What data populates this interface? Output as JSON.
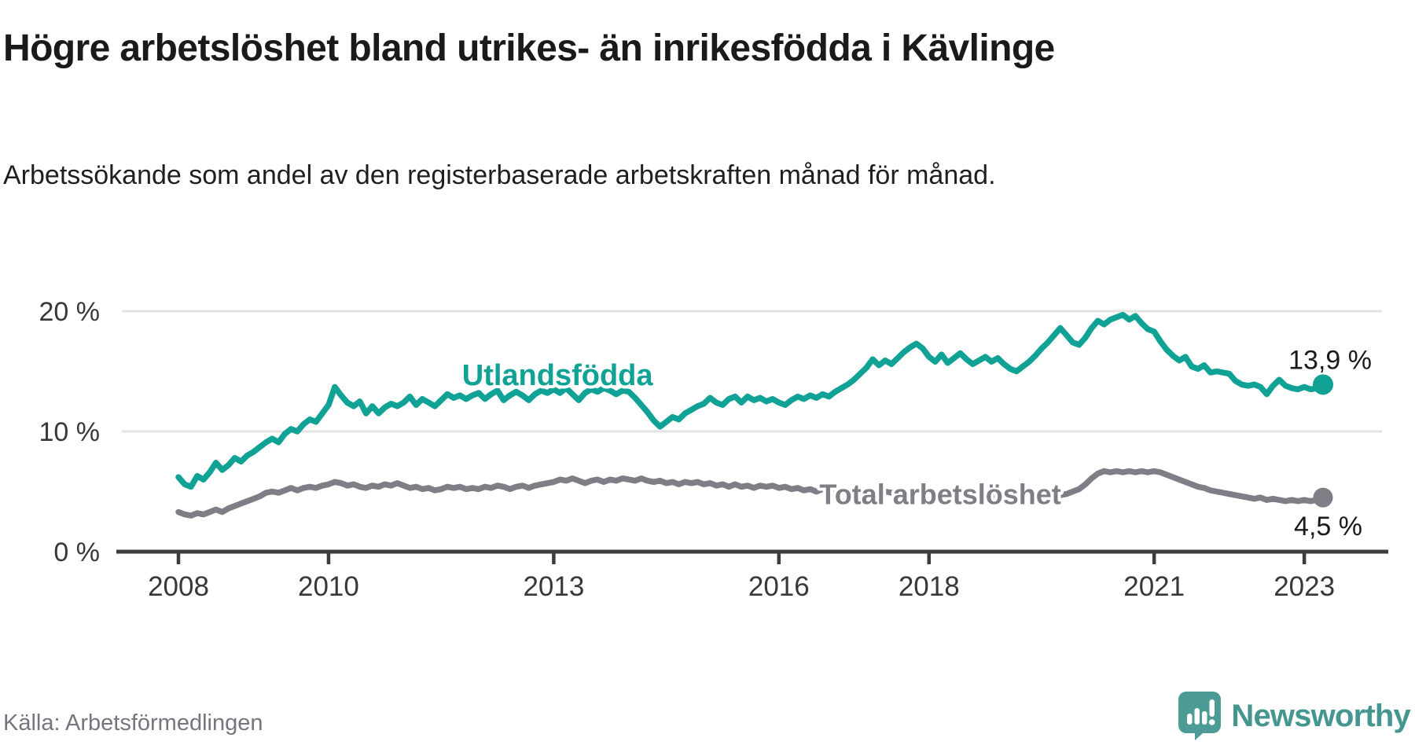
{
  "header": {
    "title": "Högre arbetslöshet bland utrikes- än inrikesfödda i Kävlinge",
    "subtitle": "Arbetssökande som andel av den registerbaserade arbetskraften månad för månad."
  },
  "footer": {
    "source": "Källa: Arbetsförmedlingen",
    "brand": "Newsworthy"
  },
  "colors": {
    "title_text": "#1a1a1a",
    "subtitle_text": "#1f1f1f",
    "grid": "#e3e3e3",
    "axis": "#3c3c3c",
    "tick_label": "#383838",
    "value_label": "#1a1a1a",
    "foreign_born_line": "#11a296",
    "total_line": "#7e7e86",
    "total_label": "#77777e",
    "source_text": "#75757d",
    "brand_teal": "#44968f",
    "logo_bubble": "#4c9b95"
  },
  "chart_data": {
    "type": "line",
    "unit": "%",
    "frequency": "monthly",
    "x_start": {
      "year": 2008,
      "month": 1
    },
    "x_end": {
      "year": 2023,
      "month": 4
    },
    "ylim": [
      0,
      26
    ],
    "grid": "horizontal",
    "legend_position": "inline-labels",
    "y_ticks": [
      {
        "value": 0,
        "label": "0 %"
      },
      {
        "value": 10,
        "label": "10 %"
      },
      {
        "value": 20,
        "label": "20 %"
      }
    ],
    "x_ticks": [
      {
        "year": 2008,
        "label": "2008"
      },
      {
        "year": 2010,
        "label": "2010"
      },
      {
        "year": 2013,
        "label": "2013"
      },
      {
        "year": 2016,
        "label": "2016"
      },
      {
        "year": 2018,
        "label": "2018"
      },
      {
        "year": 2021,
        "label": "2021"
      },
      {
        "year": 2023,
        "label": "2023"
      }
    ],
    "series": [
      {
        "id": "total",
        "name": "Total arbetslöshet",
        "color": "#7e7e86",
        "end_label": "4,5 %",
        "end_value": 4.5,
        "label_anchor": {
          "year_x": 2018.15,
          "value_y": 4.8,
          "align": "middle",
          "font_size": 36
        },
        "end_label_offset": {
          "dx": 50,
          "dy": 48
        },
        "dot_radius": 12.5,
        "values": [
          3.3,
          3.1,
          3.0,
          3.2,
          3.1,
          3.3,
          3.5,
          3.3,
          3.6,
          3.8,
          4.0,
          4.2,
          4.4,
          4.6,
          4.9,
          5.0,
          4.9,
          5.1,
          5.3,
          5.1,
          5.3,
          5.4,
          5.3,
          5.5,
          5.6,
          5.8,
          5.7,
          5.5,
          5.6,
          5.4,
          5.3,
          5.5,
          5.4,
          5.6,
          5.5,
          5.7,
          5.5,
          5.3,
          5.4,
          5.2,
          5.3,
          5.1,
          5.2,
          5.4,
          5.3,
          5.4,
          5.2,
          5.3,
          5.2,
          5.4,
          5.3,
          5.5,
          5.4,
          5.2,
          5.4,
          5.5,
          5.3,
          5.5,
          5.6,
          5.7,
          5.8,
          6.0,
          5.9,
          6.1,
          5.9,
          5.7,
          5.9,
          6.0,
          5.8,
          6.0,
          5.9,
          6.1,
          6.0,
          5.9,
          6.1,
          5.9,
          5.8,
          5.9,
          5.7,
          5.8,
          5.6,
          5.8,
          5.7,
          5.8,
          5.6,
          5.7,
          5.5,
          5.6,
          5.4,
          5.6,
          5.4,
          5.5,
          5.3,
          5.5,
          5.4,
          5.5,
          5.3,
          5.4,
          5.2,
          5.3,
          5.1,
          5.2,
          5.0,
          5.2,
          5.1,
          5.2,
          5.0,
          5.1,
          5.0,
          5.1,
          4.9,
          5.0,
          4.8,
          5.0,
          4.9,
          5.0,
          4.8,
          4.9,
          5.0,
          4.9,
          4.8,
          4.9,
          4.7,
          4.8,
          4.6,
          4.7,
          4.6,
          4.7,
          4.5,
          4.6,
          4.7,
          4.6,
          4.5,
          4.6,
          4.4,
          4.5,
          4.6,
          4.5,
          4.6,
          4.7,
          4.8,
          4.7,
          4.8,
          5.0,
          5.2,
          5.6,
          6.1,
          6.5,
          6.7,
          6.6,
          6.7,
          6.6,
          6.7,
          6.6,
          6.7,
          6.6,
          6.7,
          6.6,
          6.4,
          6.2,
          6.0,
          5.8,
          5.6,
          5.4,
          5.3,
          5.1,
          5.0,
          4.9,
          4.8,
          4.7,
          4.6,
          4.5,
          4.4,
          4.5,
          4.3,
          4.4,
          4.3,
          4.2,
          4.3,
          4.2,
          4.3,
          4.2,
          4.3,
          4.5
        ]
      },
      {
        "id": "utlandsfodda",
        "name": "Utlandsfödda",
        "color": "#11a296",
        "end_label": "13,9 %",
        "end_value": 13.9,
        "label_anchor": {
          "year_x": 2013.05,
          "value_y": 14.7,
          "align": "middle",
          "font_size": 38
        },
        "end_label_offset": {
          "dx": 62,
          "dy": -20
        },
        "dot_radius": 13,
        "values": [
          6.2,
          5.6,
          5.4,
          6.3,
          6.0,
          6.6,
          7.4,
          6.8,
          7.2,
          7.8,
          7.5,
          8.0,
          8.3,
          8.7,
          9.1,
          9.4,
          9.1,
          9.8,
          10.2,
          10.0,
          10.6,
          11.0,
          10.8,
          11.5,
          12.2,
          13.7,
          13.0,
          12.4,
          12.1,
          12.5,
          11.5,
          12.1,
          11.5,
          12.0,
          12.3,
          12.1,
          12.4,
          12.9,
          12.2,
          12.7,
          12.4,
          12.1,
          12.6,
          13.1,
          12.8,
          13.0,
          12.7,
          13.0,
          13.2,
          12.7,
          13.1,
          13.4,
          12.6,
          13.0,
          13.3,
          13.0,
          12.6,
          13.1,
          13.4,
          13.2,
          13.5,
          13.2,
          13.6,
          13.1,
          12.6,
          13.2,
          13.5,
          13.3,
          13.6,
          13.4,
          13.1,
          13.4,
          13.3,
          12.8,
          12.2,
          11.6,
          10.9,
          10.4,
          10.8,
          11.2,
          11.0,
          11.5,
          11.8,
          12.1,
          12.3,
          12.8,
          12.4,
          12.2,
          12.7,
          12.9,
          12.4,
          12.9,
          12.6,
          12.8,
          12.5,
          12.7,
          12.4,
          12.2,
          12.6,
          12.9,
          12.7,
          13.0,
          12.8,
          13.1,
          12.9,
          13.3,
          13.6,
          13.9,
          14.3,
          14.8,
          15.3,
          16.0,
          15.5,
          15.9,
          15.6,
          16.1,
          16.6,
          17.0,
          17.3,
          16.9,
          16.2,
          15.8,
          16.4,
          15.7,
          16.1,
          16.5,
          16.0,
          15.6,
          15.9,
          16.2,
          15.8,
          16.1,
          15.6,
          15.2,
          15.0,
          15.4,
          15.8,
          16.3,
          16.9,
          17.4,
          18.0,
          18.6,
          18.0,
          17.4,
          17.2,
          17.8,
          18.6,
          19.2,
          18.9,
          19.3,
          19.5,
          19.7,
          19.3,
          19.6,
          19.0,
          18.5,
          18.3,
          17.5,
          16.8,
          16.3,
          15.9,
          16.2,
          15.4,
          15.2,
          15.5,
          14.9,
          15.0,
          14.9,
          14.8,
          14.2,
          13.9,
          13.8,
          13.9,
          13.7,
          13.1,
          13.8,
          14.3,
          13.8,
          13.6,
          13.5,
          13.7,
          13.5,
          13.6,
          13.9
        ]
      }
    ]
  }
}
